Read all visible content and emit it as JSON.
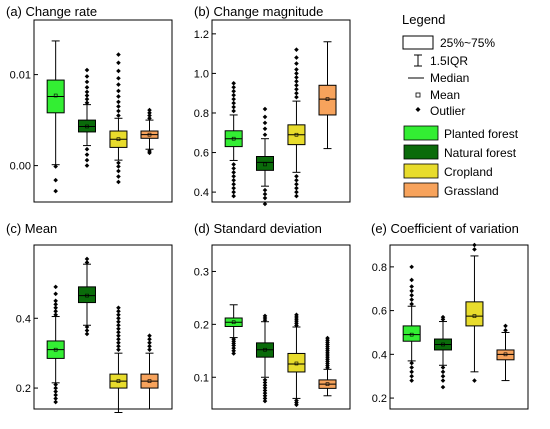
{
  "figure": {
    "legend_title": "Legend",
    "legend_items": [
      {
        "key": "box",
        "label": "25%~75%"
      },
      {
        "key": "whisker",
        "label": "1.5IQR"
      },
      {
        "key": "median",
        "label": "Median"
      },
      {
        "key": "mean",
        "label": "Mean"
      },
      {
        "key": "outlier",
        "label": "Outlier"
      }
    ],
    "series_legend": [
      {
        "name": "Planted forest",
        "color": "#33ee33"
      },
      {
        "name": "Natural forest",
        "color": "#0a6b0a"
      },
      {
        "name": "Cropland",
        "color": "#e8dc2c"
      },
      {
        "name": "Grassland",
        "color": "#f7a35c"
      }
    ]
  },
  "chart_data": [
    {
      "type": "box",
      "title": "(a) Change rate",
      "ylim": [
        -0.004,
        0.016
      ],
      "yticks": [
        0.0,
        0.01
      ],
      "ytick_labels": [
        "0.00",
        "0.01"
      ],
      "series": [
        {
          "name": "Planted forest",
          "color": "#33ee33",
          "q1": 0.0058,
          "median": 0.0076,
          "q3": 0.0094,
          "whisker_low": 0.0001,
          "whisker_high": 0.0137,
          "mean": 0.0077,
          "outliers": [
            -0.0016,
            -0.0028,
            -0.0001
          ]
        },
        {
          "name": "Natural forest",
          "color": "#0a6b0a",
          "q1": 0.0037,
          "median": 0.0043,
          "q3": 0.005,
          "whisker_low": 0.0022,
          "whisker_high": 0.0067,
          "mean": 0.0043,
          "outliers": [
            0.0069,
            0.0073,
            0.0077,
            0.0081,
            0.0086,
            0.0092,
            0.0098,
            0.0105,
            0.0018,
            0.0012,
            0.0006,
            0.0
          ]
        },
        {
          "name": "Cropland",
          "color": "#e8dc2c",
          "q1": 0.002,
          "median": 0.0029,
          "q3": 0.0038,
          "whisker_low": 0.0006,
          "whisker_high": 0.0052,
          "mean": 0.0029,
          "outliers": [
            0.0055,
            0.006,
            0.0065,
            0.007,
            0.0076,
            0.0082,
            0.0089,
            0.0096,
            0.0104,
            0.0113,
            0.0122,
            0.0003,
            -0.0001,
            -0.0006,
            -0.0012,
            -0.0018
          ]
        },
        {
          "name": "Grassland",
          "color": "#f7a35c",
          "q1": 0.003,
          "median": 0.0034,
          "q3": 0.0038,
          "whisker_low": 0.0018,
          "whisker_high": 0.005,
          "mean": 0.0034,
          "outliers": [
            0.0052,
            0.0055,
            0.0058,
            0.0061,
            0.0016,
            0.0014
          ]
        }
      ]
    },
    {
      "type": "box",
      "title": "(b) Change magnitude",
      "ylim": [
        0.35,
        1.27
      ],
      "yticks": [
        0.4,
        0.6,
        0.8,
        1.0,
        1.2
      ],
      "ytick_labels": [
        "0.4",
        "0.6",
        "0.8",
        "1.0",
        "1.2"
      ],
      "series": [
        {
          "name": "Planted forest",
          "color": "#33ee33",
          "q1": 0.63,
          "median": 0.67,
          "q3": 0.71,
          "whisker_low": 0.56,
          "whisker_high": 0.79,
          "mean": 0.67,
          "outliers": [
            0.81,
            0.83,
            0.85,
            0.87,
            0.89,
            0.91,
            0.93,
            0.95,
            0.54,
            0.52,
            0.5,
            0.48,
            0.46,
            0.44,
            0.42,
            0.4,
            0.38
          ]
        },
        {
          "name": "Natural forest",
          "color": "#0a6b0a",
          "q1": 0.51,
          "median": 0.55,
          "q3": 0.58,
          "whisker_low": 0.43,
          "whisker_high": 0.67,
          "mean": 0.54,
          "outliers": [
            0.69,
            0.72,
            0.75,
            0.78,
            0.82,
            0.41,
            0.39,
            0.37,
            0.34
          ]
        },
        {
          "name": "Cropland",
          "color": "#e8dc2c",
          "q1": 0.64,
          "median": 0.69,
          "q3": 0.74,
          "whisker_low": 0.5,
          "whisker_high": 0.86,
          "mean": 0.69,
          "outliers": [
            0.88,
            0.9,
            0.92,
            0.94,
            0.96,
            0.98,
            1.0,
            1.02,
            1.05,
            1.08,
            1.12,
            0.48,
            0.46,
            0.44,
            0.42,
            0.4,
            0.38
          ]
        },
        {
          "name": "Grassland",
          "color": "#f7a35c",
          "q1": 0.79,
          "median": 0.87,
          "q3": 0.94,
          "whisker_low": 0.62,
          "whisker_high": 1.16,
          "mean": 0.87,
          "outliers": []
        }
      ]
    },
    {
      "type": "box",
      "title": "(c) Mean",
      "ylim": [
        0.14,
        0.61
      ],
      "yticks": [
        0.2,
        0.4
      ],
      "ytick_labels": [
        "0.2",
        "0.4"
      ],
      "series": [
        {
          "name": "Planted forest",
          "color": "#33ee33",
          "q1": 0.285,
          "median": 0.31,
          "q3": 0.335,
          "whisker_low": 0.215,
          "whisker_high": 0.405,
          "mean": 0.31,
          "outliers": [
            0.41,
            0.42,
            0.43,
            0.44,
            0.45,
            0.47,
            0.49,
            0.21,
            0.2,
            0.19,
            0.18,
            0.17,
            0.16
          ]
        },
        {
          "name": "Natural forest",
          "color": "#0a6b0a",
          "q1": 0.445,
          "median": 0.465,
          "q3": 0.49,
          "whisker_low": 0.38,
          "whisker_high": 0.555,
          "mean": 0.465,
          "outliers": [
            0.56,
            0.57,
            0.375,
            0.365,
            0.355
          ]
        },
        {
          "name": "Cropland",
          "color": "#e8dc2c",
          "q1": 0.2,
          "median": 0.22,
          "q3": 0.24,
          "whisker_low": 0.13,
          "whisker_high": 0.3,
          "mean": 0.22,
          "outliers": [
            0.31,
            0.32,
            0.33,
            0.34,
            0.35,
            0.36,
            0.37,
            0.38,
            0.39,
            0.4,
            0.41,
            0.42,
            0.43
          ]
        },
        {
          "name": "Grassland",
          "color": "#f7a35c",
          "q1": 0.2,
          "median": 0.22,
          "q3": 0.24,
          "whisker_low": 0.14,
          "whisker_high": 0.3,
          "mean": 0.22,
          "outliers": [
            0.31,
            0.32,
            0.33,
            0.34,
            0.35
          ]
        }
      ]
    },
    {
      "type": "box",
      "title": "(d) Standard deviation",
      "ylim": [
        0.04,
        0.35
      ],
      "yticks": [
        0.1,
        0.2,
        0.3
      ],
      "ytick_labels": [
        "0.1",
        "0.2",
        "0.3"
      ],
      "series": [
        {
          "name": "Planted forest",
          "color": "#33ee33",
          "q1": 0.196,
          "median": 0.204,
          "q3": 0.212,
          "whisker_low": 0.175,
          "whisker_high": 0.237,
          "mean": 0.204,
          "outliers": [
            0.172,
            0.168,
            0.164,
            0.16,
            0.155,
            0.15,
            0.145
          ]
        },
        {
          "name": "Natural forest",
          "color": "#0a6b0a",
          "q1": 0.138,
          "median": 0.152,
          "q3": 0.165,
          "whisker_low": 0.1,
          "whisker_high": 0.205,
          "mean": 0.152,
          "outliers": [
            0.208,
            0.212,
            0.216,
            0.095,
            0.09,
            0.085,
            0.08,
            0.075,
            0.07,
            0.065,
            0.06,
            0.055
          ]
        },
        {
          "name": "Cropland",
          "color": "#e8dc2c",
          "q1": 0.11,
          "median": 0.125,
          "q3": 0.145,
          "whisker_low": 0.06,
          "whisker_high": 0.195,
          "mean": 0.126,
          "outliers": [
            0.198,
            0.202,
            0.206,
            0.21,
            0.214,
            0.218,
            0.056,
            0.052,
            0.048
          ]
        },
        {
          "name": "Grassland",
          "color": "#f7a35c",
          "q1": 0.079,
          "median": 0.087,
          "q3": 0.095,
          "whisker_low": 0.065,
          "whisker_high": 0.115,
          "mean": 0.087,
          "outliers": [
            0.118,
            0.122,
            0.126,
            0.13,
            0.134,
            0.138,
            0.142,
            0.146,
            0.15,
            0.154,
            0.158,
            0.162,
            0.166,
            0.17,
            0.174
          ]
        }
      ]
    },
    {
      "type": "box",
      "title": "(e) Coefficient of variation",
      "ylim": [
        0.15,
        0.9
      ],
      "yticks": [
        0.2,
        0.4,
        0.6,
        0.8
      ],
      "ytick_labels": [
        "0.2",
        "0.4",
        "0.6",
        "0.8"
      ],
      "series": [
        {
          "name": "Planted forest",
          "color": "#33ee33",
          "q1": 0.46,
          "median": 0.49,
          "q3": 0.53,
          "whisker_low": 0.37,
          "whisker_high": 0.62,
          "mean": 0.49,
          "outliers": [
            0.63,
            0.65,
            0.67,
            0.69,
            0.71,
            0.74,
            0.8,
            0.36,
            0.34,
            0.32,
            0.3,
            0.28
          ]
        },
        {
          "name": "Natural forest",
          "color": "#0a6b0a",
          "q1": 0.42,
          "median": 0.445,
          "q3": 0.47,
          "whisker_low": 0.35,
          "whisker_high": 0.55,
          "mean": 0.445,
          "outliers": [
            0.56,
            0.57,
            0.34,
            0.32,
            0.3,
            0.28,
            0.25
          ]
        },
        {
          "name": "Cropland",
          "color": "#e8dc2c",
          "q1": 0.53,
          "median": 0.575,
          "q3": 0.64,
          "whisker_low": 0.32,
          "whisker_high": 0.85,
          "mean": 0.575,
          "outliers": [
            0.88,
            0.9,
            0.28
          ]
        },
        {
          "name": "Grassland",
          "color": "#f7a35c",
          "q1": 0.375,
          "median": 0.4,
          "q3": 0.42,
          "whisker_low": 0.28,
          "whisker_high": 0.5,
          "mean": 0.4,
          "outliers": [
            0.51,
            0.53
          ]
        }
      ]
    }
  ]
}
